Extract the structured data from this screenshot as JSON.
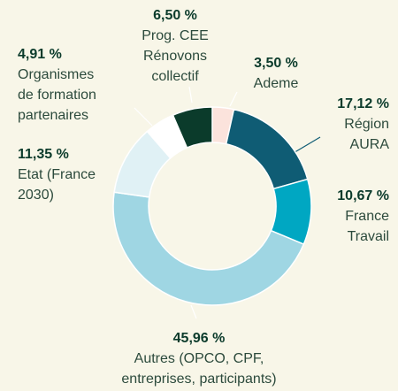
{
  "chart_data": {
    "type": "donut",
    "categories": [
      [
        "Ademe"
      ],
      [
        "Région",
        "AURA"
      ],
      [
        "France",
        "Travail"
      ],
      [
        "Autres (OPCO, CPF,",
        "entreprises, participants)"
      ],
      [
        "Etat (France",
        "2030)"
      ],
      [
        "Organismes",
        "de formation",
        "partenaires"
      ],
      [
        "Prog. CEE",
        "Rénovons",
        "collectif"
      ]
    ],
    "values": [
      3.5,
      17.12,
      10.67,
      45.96,
      11.35,
      4.91,
      6.5
    ],
    "value_labels": [
      "3,50 %",
      "17,12 %",
      "10,67 %",
      "45,96 %",
      "11,35 %",
      "4,91 %",
      "6,50 %"
    ],
    "colors": [
      "#fbe3dc",
      "#0f5c74",
      "#00a7c2",
      "#9fd6e3",
      "#e0f1f5",
      "#ffffff",
      "#0b3b2b"
    ]
  }
}
